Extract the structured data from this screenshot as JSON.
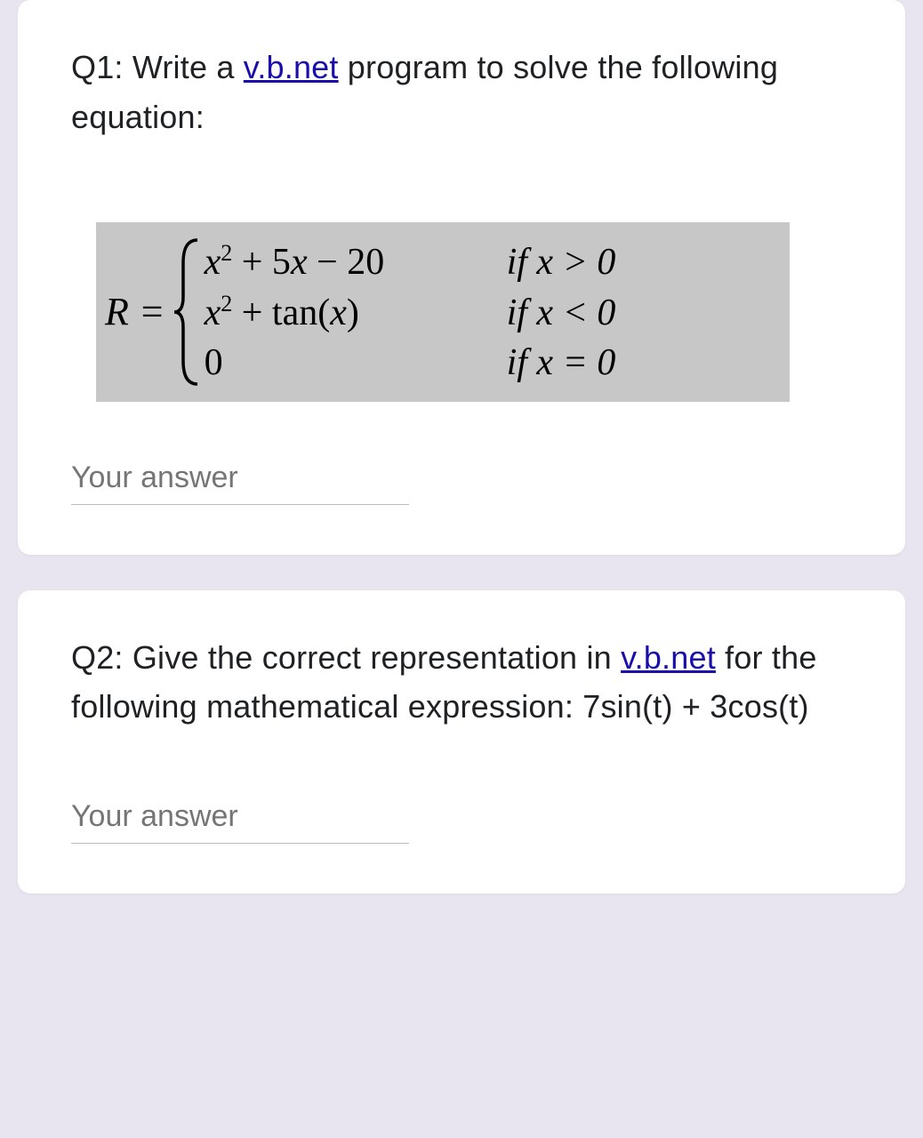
{
  "colors": {
    "page_bg": "#e8e4f0",
    "card_bg": "#ffffff",
    "text": "#202124",
    "link": "#1a0dab",
    "equation_bg": "#c7c7c7",
    "input_border": "#bdbdbd",
    "placeholder": "#757575"
  },
  "q1": {
    "prefix": "Q1: Write a ",
    "link_text": "v.b.net",
    "suffix": " program to solve the following equation:",
    "equation": {
      "lhs": "R =",
      "cases": [
        {
          "expr_html": "<span class='it'>x</span><sup>2</sup> + 5<span class='it'>x</span> − 20",
          "cond_html": "if <span class='it'>x</span> &gt; 0"
        },
        {
          "expr_html": "<span class='it'>x</span><sup>2</sup> + tan(<span class='it'>x</span>)",
          "cond_html": "if <span class='it'>x</span> &lt; 0"
        },
        {
          "expr_html": "0",
          "cond_html": "if <span class='it'>x</span> = 0"
        }
      ]
    },
    "answer_placeholder": "Your answer"
  },
  "q2": {
    "prefix1": "Q2: Give the correct representation in ",
    "link_text": "v.b.net",
    "suffix1": " for the following mathematical expression: ",
    "expression": "7sin(t) + 3cos(t)",
    "answer_placeholder": "Your answer"
  }
}
